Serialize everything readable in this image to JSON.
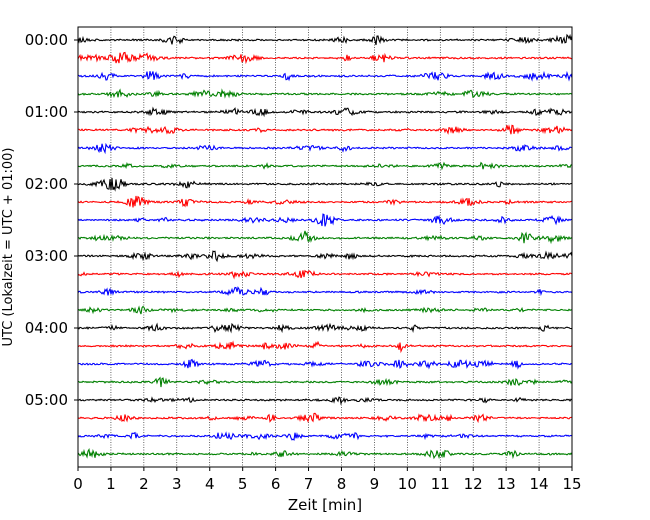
{
  "chart_data": {
    "type": "line",
    "title": "",
    "xlabel": "Zeit  [min]",
    "ylabel": "UTC (Lokalzeit = UTC + 01:00)",
    "xlim": [
      0,
      15
    ],
    "x_ticks": [
      0,
      1,
      2,
      3,
      4,
      5,
      6,
      7,
      8,
      9,
      10,
      11,
      12,
      13,
      14,
      15
    ],
    "y_tick_labels": [
      "00:00",
      "01:00",
      "02:00",
      "03:00",
      "04:00",
      "05:00"
    ],
    "trace_start_times": [
      "00:00",
      "00:15",
      "00:30",
      "00:45",
      "01:00",
      "01:15",
      "01:30",
      "01:45",
      "02:00",
      "02:15",
      "02:30",
      "02:45",
      "03:00",
      "03:15",
      "03:30",
      "03:45",
      "04:00",
      "04:15",
      "04:30",
      "04:45",
      "05:00",
      "05:15",
      "05:30",
      "05:45"
    ],
    "trace_duration_min": 15,
    "color_cycle": [
      "#000000",
      "#ff0000",
      "#0000ff",
      "#008000"
    ],
    "grid": {
      "x": true,
      "style": "dotted"
    },
    "legend": "none"
  }
}
